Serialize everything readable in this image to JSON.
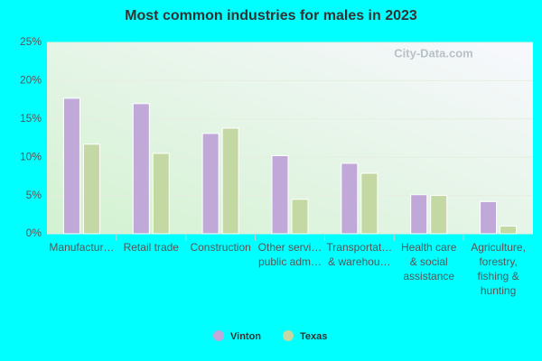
{
  "chart_data": {
    "type": "bar",
    "title": "Most common industries for males in 2023",
    "watermark": "City-Data.com",
    "categories": [
      [
        "Manufactur…"
      ],
      [
        "Retail trade"
      ],
      [
        "Construction"
      ],
      [
        "Other servi…",
        "public adm…"
      ],
      [
        "Transportat…",
        "& warehou…"
      ],
      [
        "Health care",
        "& social",
        "assistance"
      ],
      [
        "Agriculture,",
        "forestry,",
        "fishing &",
        "hunting"
      ]
    ],
    "series": [
      {
        "name": "Vinton",
        "color": "#c0a8d8",
        "values": [
          17.7,
          17.0,
          13.1,
          10.2,
          9.2,
          5.1,
          4.2
        ]
      },
      {
        "name": "Texas",
        "color": "#c4d8a4",
        "values": [
          11.7,
          10.5,
          13.8,
          4.5,
          7.9,
          5.0,
          1.0
        ]
      }
    ],
    "ylim": [
      0,
      25
    ],
    "yticks": [
      {
        "value": 0,
        "label": "0%"
      },
      {
        "value": 5,
        "label": "5%"
      },
      {
        "value": 10,
        "label": "10%"
      },
      {
        "value": 15,
        "label": "15%"
      },
      {
        "value": 20,
        "label": "20%"
      },
      {
        "value": 25,
        "label": "25%"
      }
    ],
    "grid": true
  }
}
